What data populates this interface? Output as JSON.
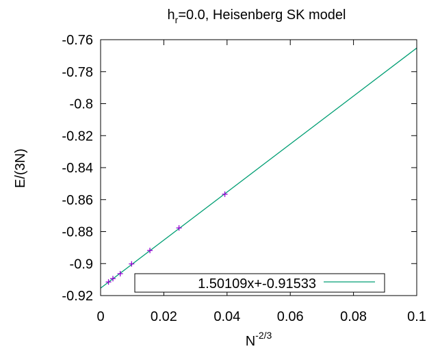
{
  "chart_data": {
    "type": "scatter",
    "title": {
      "main": "h",
      "sub": "r",
      "rest": "=0.0, Heisenberg SK model"
    },
    "xlabel": {
      "base": "N",
      "sup": "-2/3"
    },
    "ylabel": "E/(3N)",
    "xlim": [
      0,
      0.1
    ],
    "ylim": [
      -0.92,
      -0.76
    ],
    "x_ticks": [
      0,
      0.02,
      0.04,
      0.06,
      0.08,
      0.1
    ],
    "x_tick_labels": [
      "0",
      "0.02",
      "0.04",
      "0.06",
      "0.08",
      "0.1"
    ],
    "y_ticks": [
      -0.92,
      -0.9,
      -0.88,
      -0.86,
      -0.84,
      -0.82,
      -0.8,
      -0.78,
      -0.76
    ],
    "y_tick_labels": [
      "-0.92",
      "-0.9",
      "-0.88",
      "-0.86",
      "-0.84",
      "-0.82",
      "-0.8",
      "-0.78",
      "-0.76"
    ],
    "grid": false,
    "legend_position": "bottom-right",
    "series": [
      {
        "type": "scatter",
        "marker": "+",
        "color": "#9400d3",
        "points": [
          {
            "x": 0.0393,
            "y": -0.8566
          },
          {
            "x": 0.0248,
            "y": -0.8777
          },
          {
            "x": 0.0156,
            "y": -0.8918
          },
          {
            "x": 0.0098,
            "y": -0.9002
          },
          {
            "x": 0.0062,
            "y": -0.9063
          },
          {
            "x": 0.0039,
            "y": -0.9094
          },
          {
            "x": 0.0025,
            "y": -0.9115
          }
        ]
      },
      {
        "type": "line",
        "name": "1.50109x+-0.91533",
        "color": "#009e73",
        "slope": 1.50109,
        "intercept": -0.91533
      }
    ]
  }
}
